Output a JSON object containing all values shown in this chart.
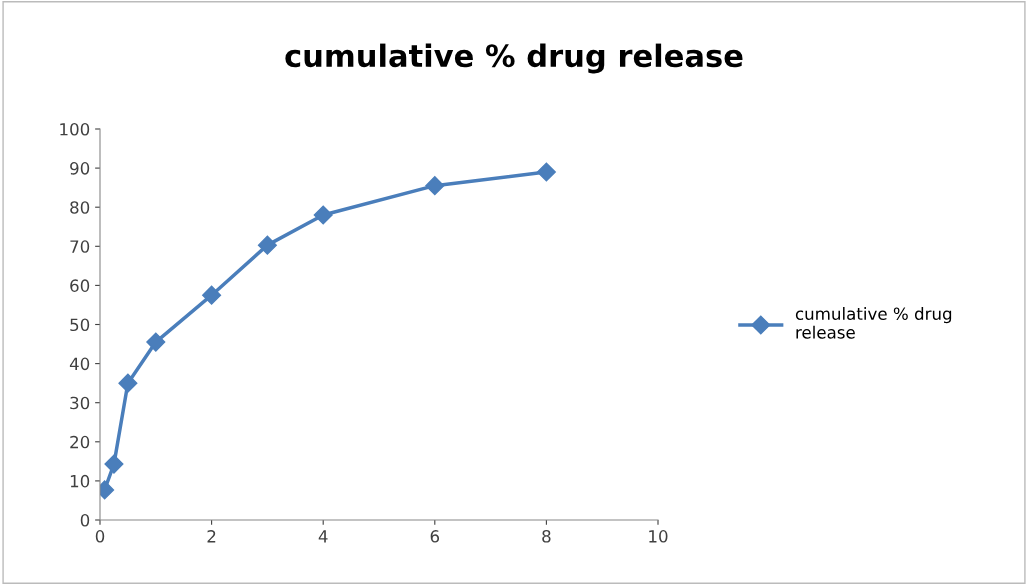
{
  "chart_data": {
    "type": "line",
    "title": "cumulative % drug release",
    "x": [
      0.083,
      0.25,
      0.5,
      1,
      2,
      3,
      4,
      6,
      8
    ],
    "series": [
      {
        "name": "cumulative % drug release",
        "color": "#4a7ebb",
        "values": [
          7.7,
          14.3,
          35,
          45.5,
          57.5,
          70.3,
          78,
          85.5,
          89
        ]
      }
    ],
    "xlim": [
      0,
      10
    ],
    "xticks": [
      0,
      2,
      4,
      6,
      8,
      10
    ],
    "ylim": [
      0,
      100
    ],
    "yticks": [
      0,
      10,
      20,
      30,
      40,
      50,
      60,
      70,
      80,
      90,
      100
    ],
    "grid": false,
    "legend": "right",
    "marker": "diamond",
    "line_style": "solid"
  }
}
